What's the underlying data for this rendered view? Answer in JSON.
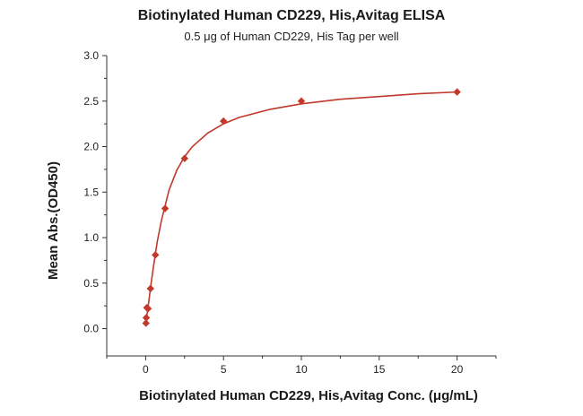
{
  "chart_data": {
    "type": "scatter",
    "title": "Biotinylated Human CD229, His,Avitag ELISA",
    "subtitle": "0.5 μg of Human CD229, His Tag per well",
    "xlabel": "Biotinylated Human CD229, His,Avitag Conc. (μg/mL)",
    "ylabel": "Mean Abs.(OD450)",
    "xlim": [
      -2.5,
      22.5
    ],
    "ylim": [
      -0.3,
      3.0
    ],
    "x_ticks": [
      0,
      5,
      10,
      15,
      20
    ],
    "x_tick_labels": [
      "0",
      "5",
      "10",
      "15",
      "20"
    ],
    "y_ticks": [
      0.0,
      0.5,
      1.0,
      1.5,
      2.0,
      2.5,
      3.0
    ],
    "y_tick_labels": [
      "0.0",
      "0.5",
      "1.0",
      "1.5",
      "2.0",
      "2.5",
      "3.0"
    ],
    "grid": false,
    "legend": "none",
    "marker": "diamond",
    "color": "#c0392b",
    "series": [
      {
        "points": [
          {
            "x": 0.0195,
            "y": 0.06
          },
          {
            "x": 0.039,
            "y": 0.12
          },
          {
            "x": 0.078,
            "y": 0.23
          },
          {
            "x": 0.156,
            "y": 0.22
          },
          {
            "x": 0.3125,
            "y": 0.44
          },
          {
            "x": 0.625,
            "y": 0.81
          },
          {
            "x": 1.25,
            "y": 1.32
          },
          {
            "x": 2.5,
            "y": 1.87
          },
          {
            "x": 5.0,
            "y": 2.28
          },
          {
            "x": 10.0,
            "y": 2.5
          },
          {
            "x": 20.0,
            "y": 2.6
          }
        ],
        "fit_curve": [
          {
            "x": 0.0,
            "y": 0.03
          },
          {
            "x": 0.1,
            "y": 0.17
          },
          {
            "x": 0.2,
            "y": 0.3
          },
          {
            "x": 0.35,
            "y": 0.5
          },
          {
            "x": 0.5,
            "y": 0.68
          },
          {
            "x": 0.75,
            "y": 0.96
          },
          {
            "x": 1.0,
            "y": 1.18
          },
          {
            "x": 1.5,
            "y": 1.52
          },
          {
            "x": 2.0,
            "y": 1.74
          },
          {
            "x": 2.5,
            "y": 1.89
          },
          {
            "x": 3.0,
            "y": 2.0
          },
          {
            "x": 4.0,
            "y": 2.15
          },
          {
            "x": 5.0,
            "y": 2.25
          },
          {
            "x": 6.0,
            "y": 2.32
          },
          {
            "x": 8.0,
            "y": 2.41
          },
          {
            "x": 10.0,
            "y": 2.47
          },
          {
            "x": 12.5,
            "y": 2.52
          },
          {
            "x": 15.0,
            "y": 2.55
          },
          {
            "x": 17.5,
            "y": 2.58
          },
          {
            "x": 20.0,
            "y": 2.6
          }
        ]
      }
    ]
  }
}
